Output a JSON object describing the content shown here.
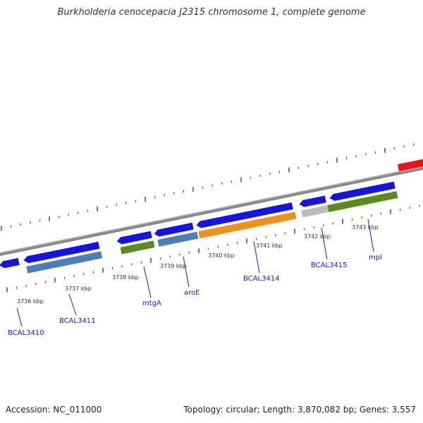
{
  "title": "Burkholderia cenocepacia J2315 chromosome 1, complete genome",
  "footer": {
    "accession": "Accession: NC_011000",
    "topology": "Topology: circular; Length: 3,870,082 bp; Genes: 3,557"
  },
  "kbp_labels": [
    "3736 kbp",
    "3737 kbp",
    "3738 kbp",
    "3739 kbp",
    "3740 kbp",
    "3741 kbp",
    "3742 kbp",
    "3743 kbp"
  ],
  "gene_labels": [
    "BCAL3410",
    "BCAL3411",
    "mtgA",
    "aroE",
    "BCAL3414",
    "BCAL3415",
    "mpl"
  ],
  "colors": {
    "backbone": "#888888",
    "gene_blue": "#1414e6",
    "cog_steelblue": "#4a7fb5",
    "cog_olive": "#5a8a22",
    "cog_orange": "#f0901a",
    "cog_gray": "#bdbdbd",
    "highlight_red": "#ee1111",
    "tick_green": "#2a7a2a",
    "label_blue": "#1a1acc"
  }
}
